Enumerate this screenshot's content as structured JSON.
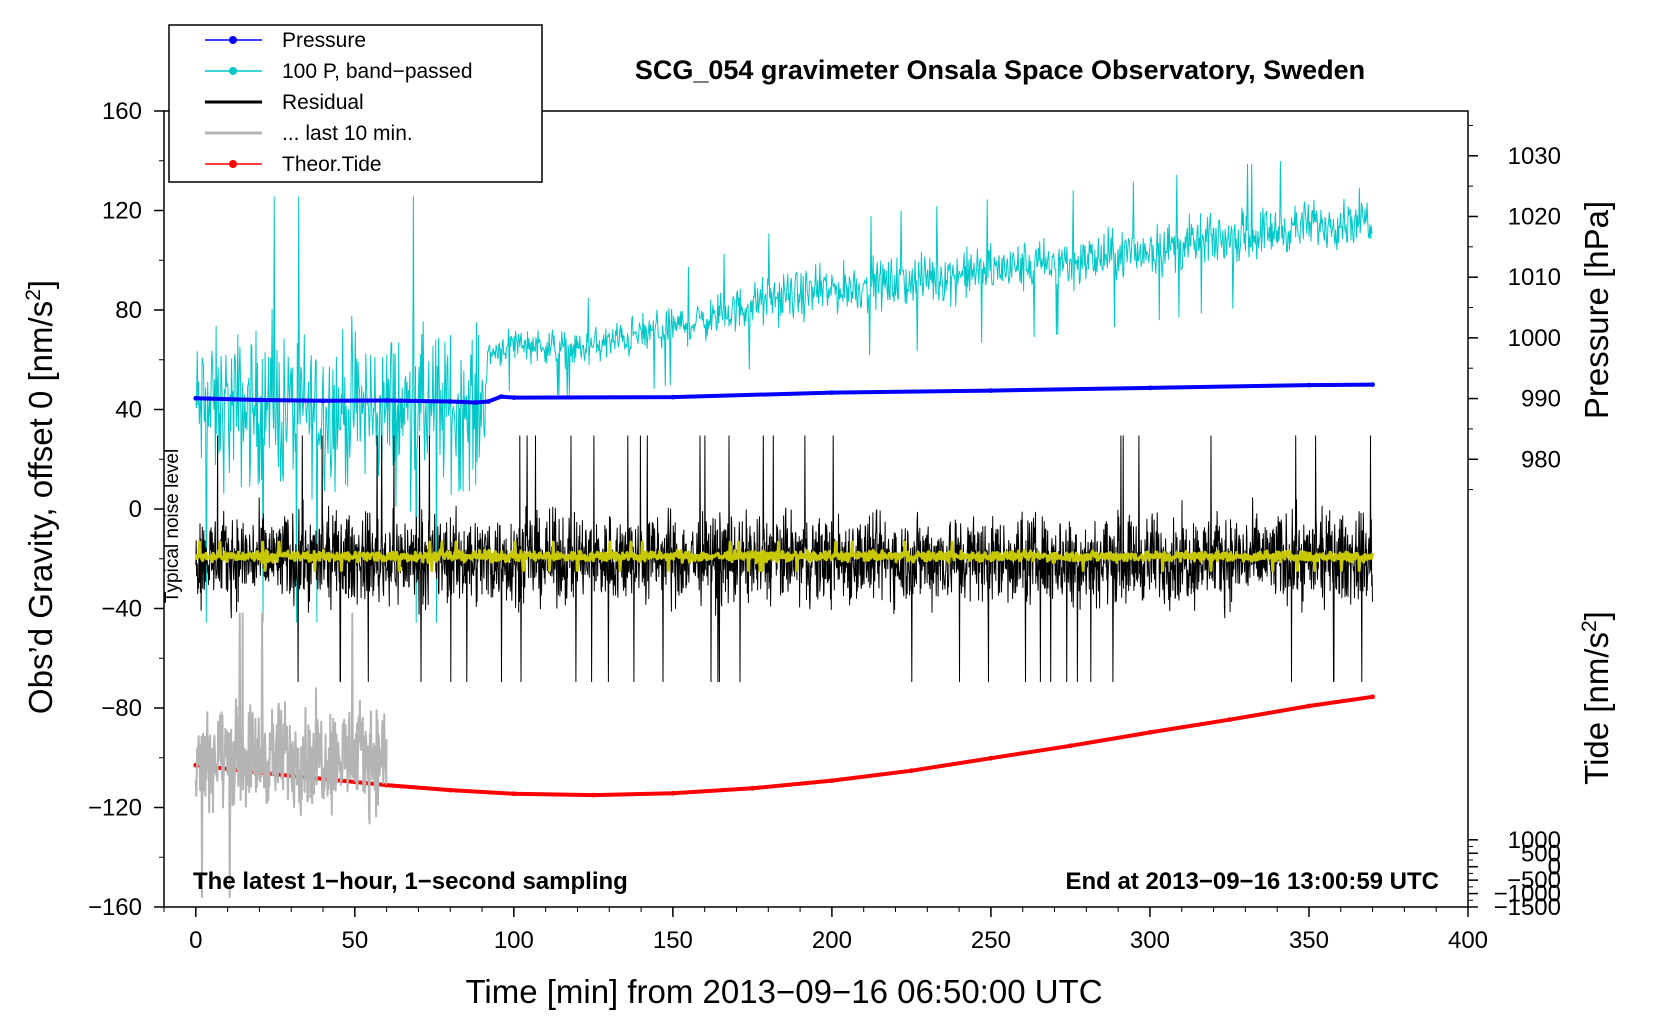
{
  "chart_data": {
    "type": "line",
    "title": "SCG_054 gravimeter Onsala Space Observatory, Sweden",
    "xlabel": "Time [min] from 2013−09−16 06:50:00 UTC",
    "ylabel_left": "Obs’d Gravity, offset 0 [nm/s",
    "ylabel_left_sup": "2",
    "ylabel_left_tail": "]",
    "ylabel_right_top": "Pressure [hPa]",
    "ylabel_right_bottom": "Tide [nm/s",
    "ylabel_right_bottom_sup": "2",
    "ylabel_right_bottom_tail": "]",
    "xlim": [
      -10,
      400
    ],
    "ylim_left": [
      -160,
      160
    ],
    "x_ticks": [
      0,
      50,
      100,
      150,
      200,
      250,
      300,
      350,
      400
    ],
    "x_tick_labels": [
      "0",
      "50",
      "100",
      "150",
      "200",
      "250",
      "300",
      "350",
      "400"
    ],
    "y_left_ticks": [
      160,
      120,
      80,
      40,
      0,
      -40,
      -80,
      -120,
      -160
    ],
    "y_left_tick_labels": [
      "160",
      "120",
      "80",
      "40",
      "0",
      "−40",
      "−80",
      "−120",
      "−160"
    ],
    "pressure_axis": {
      "ticks": [
        1030,
        1020,
        1010,
        1000,
        990,
        980
      ],
      "tick_labels": [
        "1030",
        "1020",
        "1010",
        "1000",
        "990",
        "980"
      ],
      "map_hpa": [
        980,
        1030
      ],
      "map_left": [
        20,
        142
      ]
    },
    "tide_axis": {
      "ticks": [
        1000,
        500,
        0,
        -500,
        -1000,
        -1500
      ],
      "tick_labels": [
        "1000",
        "500",
        "0",
        "−500",
        "−1000",
        "−1500"
      ],
      "map_tide": [
        -1500,
        1000
      ],
      "map_left": [
        -160,
        -133
      ]
    },
    "legend": [
      {
        "label": "Pressure",
        "color": "#0000ff",
        "marker": true
      },
      {
        "label": "100 P, band−passed",
        "color": "#00c8c8",
        "marker": true
      },
      {
        "label": "Residual",
        "color": "#000000",
        "marker": false
      },
      {
        "label": "... last 10 min.",
        "color": "#b4b4b4",
        "marker": false
      },
      {
        "label": "Theor.Tide",
        "color": "#ff0000",
        "marker": true
      }
    ],
    "annotations": {
      "bottom_left": "The latest 1−hour, 1−second sampling",
      "bottom_right": "End at 2013−09−16 13:00:59 UTC",
      "noise_label": "Typical noise level"
    },
    "series": [
      {
        "name": "Pressure",
        "color": "#0000ff",
        "width": 4,
        "x": [
          0,
          20,
          40,
          60,
          80,
          88,
          92,
          96,
          100,
          150,
          200,
          250,
          300,
          350,
          370
        ],
        "y": [
          44.5,
          43.8,
          43.5,
          43.6,
          43.2,
          42.8,
          43.2,
          45.2,
          44.8,
          45.0,
          46.8,
          47.6,
          48.7,
          49.8,
          50.0
        ]
      },
      {
        "name": "100 P, band−passed",
        "color": "#00c8c8",
        "width": 1,
        "x": [
          0,
          30,
          60,
          90,
          92,
          100,
          120,
          140,
          160,
          180,
          200,
          220,
          250,
          280,
          300,
          330,
          350,
          370
        ],
        "y": [
          40,
          40,
          40,
          40,
          62,
          67,
          64,
          70,
          76,
          84,
          88,
          91,
          96,
          100,
          104,
          110,
          114,
          117
        ],
        "noise_amp": [
          45,
          45,
          45,
          45,
          9,
          10,
          10,
          12,
          12,
          14,
          14,
          15,
          15,
          15,
          15,
          15,
          14,
          14
        ]
      },
      {
        "name": "Residual",
        "color": "#000000",
        "width": 1,
        "x": [
          0,
          370
        ],
        "y": [
          -20,
          -20
        ],
        "noise_amp": 26
      },
      {
        "name": "Typical noise level",
        "color": "#c8c800",
        "width": 3,
        "x": [
          0,
          370
        ],
        "y": [
          -19,
          -19
        ],
        "noise_amp": 3
      },
      {
        "name": "... last 10 min.",
        "color": "#b4b4b4",
        "width": 2,
        "x": [
          0,
          60
        ],
        "y": [
          -99,
          -99
        ],
        "noise_amp": 30
      },
      {
        "name": "Theor.Tide",
        "color": "#ff0000",
        "width": 4,
        "x": [
          0,
          20,
          40,
          60,
          80,
          100,
          125,
          150,
          175,
          200,
          225,
          250,
          275,
          300,
          325,
          350,
          370
        ],
        "y": [
          -103,
          -106,
          -108.5,
          -111,
          -113,
          -114.5,
          -115,
          -114.3,
          -112.3,
          -109.2,
          -105.2,
          -100.2,
          -95.2,
          -89.8,
          -84.7,
          -79.2,
          -75.5
        ]
      }
    ]
  }
}
